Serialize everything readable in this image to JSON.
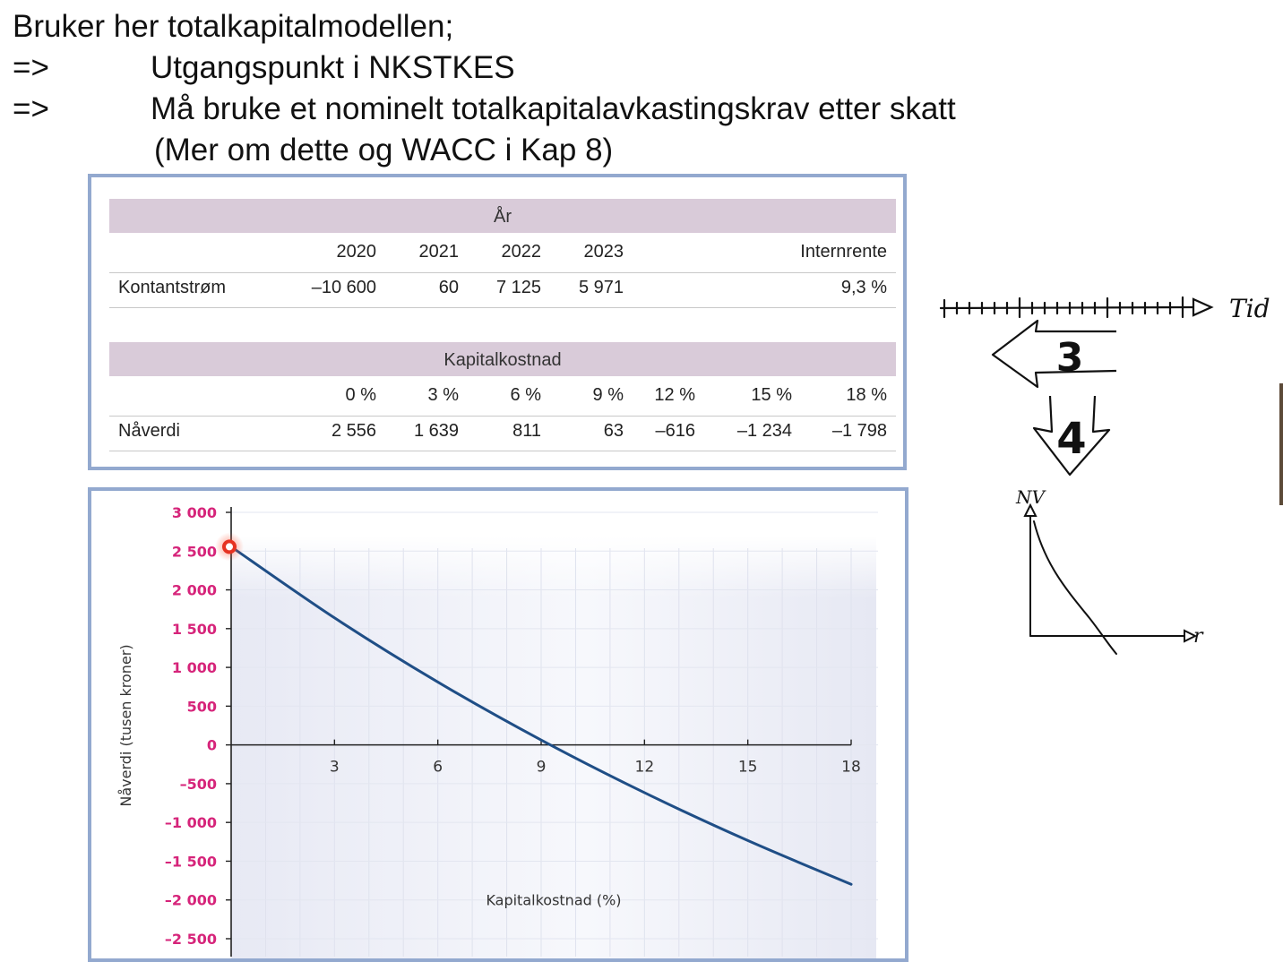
{
  "heading": {
    "line1": "Bruker her totalkapitalmodellen;",
    "line2_marker": "=>",
    "line2_text": "Utgangspunkt i NKSTKES",
    "line3_marker": "=>",
    "line3_text": "Må bruke et nominelt totalkapitalavkastingskrav etter skatt",
    "line4": "(Mer om dette og WACC i Kap 8)"
  },
  "table": {
    "year_band": "År",
    "years": [
      "2020",
      "2021",
      "2022",
      "2023"
    ],
    "irr_header": "Internrente",
    "cashflow_label": "Kontantstrøm",
    "cashflows": [
      "–10 600",
      "60",
      "7 125",
      "5 971"
    ],
    "irr_value": "9,3 %",
    "cost_band": "Kapitalkostnad",
    "rates": [
      "0 %",
      "3 %",
      "6 %",
      "9 %",
      "12 %",
      "15 %",
      "18 %"
    ],
    "npv_label": "Nåverdi",
    "npvs": [
      "2 556",
      "1 639",
      "811",
      "63",
      "–616",
      "–1 234",
      "–1 798"
    ]
  },
  "chart_data": {
    "type": "line",
    "xlabel": "Kapitalkostnad (%)",
    "ylabel": "Nåverdi (tusen kroner)",
    "xlim": [
      0,
      18
    ],
    "ylim": [
      -2500,
      3000
    ],
    "x_ticks": [
      "3",
      "6",
      "9",
      "12",
      "15",
      "18"
    ],
    "y_ticks": [
      "3 000",
      "2 500",
      "2 000",
      "1 500",
      "1 000",
      "500",
      "0",
      "–500",
      "–1 000",
      "–1 500",
      "–2 000",
      "–2 500"
    ],
    "series": [
      {
        "x": [
          0,
          3,
          6,
          9,
          12,
          15,
          18
        ],
        "y": [
          2556,
          1639,
          811,
          63,
          -616,
          -1234,
          -1798
        ],
        "color": "#1f4e86"
      }
    ],
    "tick_label_color": "#d6247a",
    "cursor_color": "#e63322",
    "grid": true
  },
  "sketch": {
    "timeline_label": "Tid",
    "step_three": "3",
    "step_four": "4",
    "graph_ylabel": "NV",
    "graph_xlabel": "r"
  }
}
